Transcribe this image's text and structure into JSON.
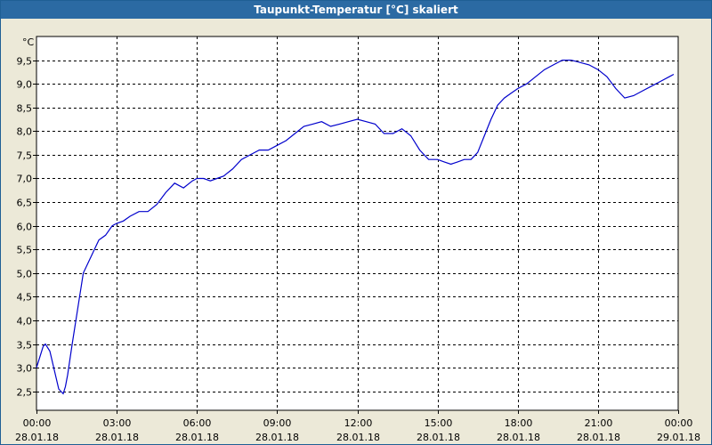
{
  "window": {
    "title": "Taupunkt-Temperatur [°C] skaliert"
  },
  "chart_data": {
    "type": "line",
    "title": "Taupunkt-Temperatur [°C] skaliert",
    "ylabel": "°C",
    "xlabel": "",
    "grid": true,
    "ylim": [
      2.1,
      10.0
    ],
    "yticks": [
      2.5,
      3.0,
      3.5,
      4.0,
      4.5,
      5.0,
      5.5,
      6.0,
      6.5,
      7.0,
      7.5,
      8.0,
      8.5,
      9.0,
      9.5
    ],
    "ytick_labels": [
      "2,5",
      "3,0",
      "3,5",
      "4,0",
      "4,5",
      "5,0",
      "5,5",
      "6,0",
      "6,5",
      "7,0",
      "7,5",
      "8,0",
      "8,5",
      "9,0",
      "9,5"
    ],
    "xlim": [
      "28.01.18 00:00",
      "29.01.18 00:00"
    ],
    "xticks": [
      {
        "time": "00:00",
        "date": "28.01.18"
      },
      {
        "time": "03:00",
        "date": "28.01.18"
      },
      {
        "time": "06:00",
        "date": "28.01.18"
      },
      {
        "time": "09:00",
        "date": "28.01.18"
      },
      {
        "time": "12:00",
        "date": "28.01.18"
      },
      {
        "time": "15:00",
        "date": "28.01.18"
      },
      {
        "time": "18:00",
        "date": "28.01.18"
      },
      {
        "time": "21:00",
        "date": "28.01.18"
      },
      {
        "time": "00:00",
        "date": "29.01.18"
      }
    ],
    "series": [
      {
        "color": "#0000cc",
        "x": [
          "00:00",
          "00:15",
          "00:20",
          "00:30",
          "00:40",
          "00:50",
          "01:00",
          "01:05",
          "01:10",
          "01:20",
          "01:35",
          "01:45",
          "02:00",
          "02:20",
          "02:35",
          "02:50",
          "03:00",
          "03:15",
          "03:30",
          "03:50",
          "04:10",
          "04:30",
          "04:50",
          "05:10",
          "05:30",
          "05:50",
          "06:00",
          "06:15",
          "06:30",
          "06:45",
          "07:00",
          "07:20",
          "07:40",
          "08:00",
          "08:20",
          "08:40",
          "09:00",
          "09:20",
          "09:40",
          "10:00",
          "10:20",
          "10:40",
          "11:00",
          "11:20",
          "11:40",
          "12:00",
          "12:20",
          "12:40",
          "13:00",
          "13:20",
          "13:40",
          "14:00",
          "14:20",
          "14:40",
          "15:00",
          "15:15",
          "15:30",
          "15:45",
          "16:00",
          "16:15",
          "16:30",
          "16:45",
          "17:00",
          "17:15",
          "17:30",
          "17:45",
          "18:00",
          "18:20",
          "18:40",
          "19:00",
          "19:20",
          "19:40",
          "20:00",
          "20:20",
          "20:40",
          "21:00",
          "21:20",
          "21:40",
          "22:00",
          "22:20",
          "22:40",
          "23:00",
          "23:20",
          "23:40",
          "23:50"
        ],
        "y": [
          3.0,
          3.45,
          3.5,
          3.35,
          2.95,
          2.55,
          2.45,
          2.6,
          2.85,
          3.5,
          4.4,
          5.0,
          5.3,
          5.7,
          5.8,
          6.0,
          6.05,
          6.1,
          6.2,
          6.3,
          6.3,
          6.45,
          6.7,
          6.9,
          6.8,
          6.95,
          7.0,
          7.0,
          6.95,
          7.0,
          7.05,
          7.2,
          7.4,
          7.5,
          7.6,
          7.6,
          7.7,
          7.8,
          7.95,
          8.1,
          8.15,
          8.2,
          8.1,
          8.15,
          8.2,
          8.25,
          8.2,
          8.15,
          7.95,
          7.95,
          8.05,
          7.9,
          7.6,
          7.4,
          7.4,
          7.35,
          7.3,
          7.35,
          7.4,
          7.4,
          7.55,
          7.9,
          8.25,
          8.55,
          8.7,
          8.8,
          8.9,
          9.0,
          9.15,
          9.3,
          9.4,
          9.5,
          9.5,
          9.45,
          9.4,
          9.3,
          9.15,
          8.9,
          8.7,
          8.75,
          8.85,
          8.95,
          9.05,
          9.15,
          9.2
        ]
      }
    ]
  }
}
